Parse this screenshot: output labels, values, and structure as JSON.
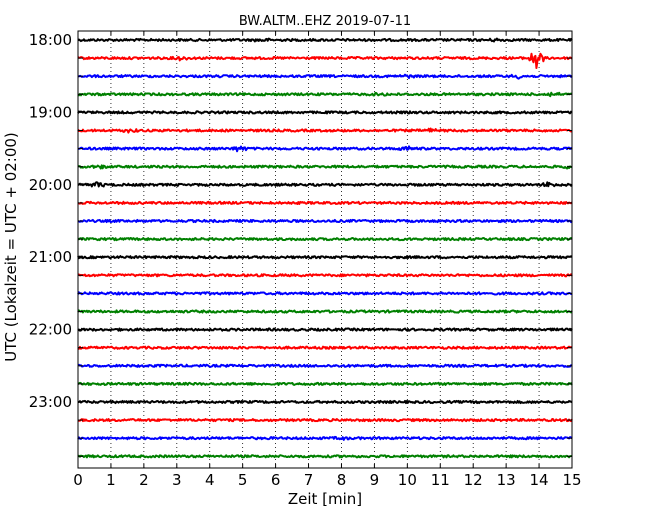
{
  "chart_data": {
    "type": "line",
    "title": "BW.ALTM..EHZ 2019-07-11",
    "xlabel": "Zeit  [min]",
    "ylabel": "UTC (Lokalzeit = UTC + 02:00)",
    "xlim": [
      0,
      15
    ],
    "x_ticks": [
      "0",
      "1",
      "2",
      "3",
      "4",
      "5",
      "6",
      "7",
      "8",
      "9",
      "10",
      "11",
      "12",
      "13",
      "14",
      "15"
    ],
    "y_ticks": [
      "18:00",
      "19:00",
      "20:00",
      "21:00",
      "22:00",
      "23:00"
    ],
    "grid": "vertical dotted",
    "trace_interval_min": 15,
    "trace_colors": [
      "#000000",
      "#ff0000",
      "#0000ff",
      "#008000"
    ],
    "traces": [
      {
        "start": "18:00",
        "bursts": [
          [
            5.6,
            2.2
          ],
          [
            12.7,
            2.0
          ]
        ]
      },
      {
        "start": "18:15",
        "bursts": [
          [
            3.1,
            2.5
          ],
          [
            13.9,
            12.0
          ]
        ]
      },
      {
        "start": "18:30",
        "bursts": [
          [
            10.0,
            2.0
          ],
          [
            13.4,
            2.5
          ]
        ]
      },
      {
        "start": "18:45",
        "bursts": [
          [
            9.2,
            2.2
          ],
          [
            14.4,
            2.5
          ]
        ]
      },
      {
        "start": "19:00",
        "bursts": []
      },
      {
        "start": "19:15",
        "bursts": [
          [
            1.6,
            2.2
          ],
          [
            10.7,
            2.2
          ]
        ]
      },
      {
        "start": "19:30",
        "bursts": [
          [
            4.9,
            3.0
          ],
          [
            10.0,
            2.5
          ]
        ]
      },
      {
        "start": "19:45",
        "bursts": [
          [
            0.7,
            2.0
          ],
          [
            14.9,
            2.0
          ]
        ]
      },
      {
        "start": "20:00",
        "bursts": [
          [
            0.6,
            3.0
          ],
          [
            14.3,
            3.0
          ]
        ]
      },
      {
        "start": "20:15",
        "bursts": []
      },
      {
        "start": "20:30",
        "bursts": []
      },
      {
        "start": "20:45",
        "bursts": []
      },
      {
        "start": "21:00",
        "bursts": []
      },
      {
        "start": "21:15",
        "bursts": []
      },
      {
        "start": "21:30",
        "bursts": []
      },
      {
        "start": "21:45",
        "bursts": []
      },
      {
        "start": "22:00",
        "bursts": []
      },
      {
        "start": "22:15",
        "bursts": []
      },
      {
        "start": "22:30",
        "bursts": []
      },
      {
        "start": "22:45",
        "bursts": []
      },
      {
        "start": "23:00",
        "bursts": []
      },
      {
        "start": "23:15",
        "bursts": []
      },
      {
        "start": "23:30",
        "bursts": [
          [
            8.0,
            1.8
          ]
        ]
      },
      {
        "start": "23:45",
        "bursts": []
      }
    ]
  }
}
